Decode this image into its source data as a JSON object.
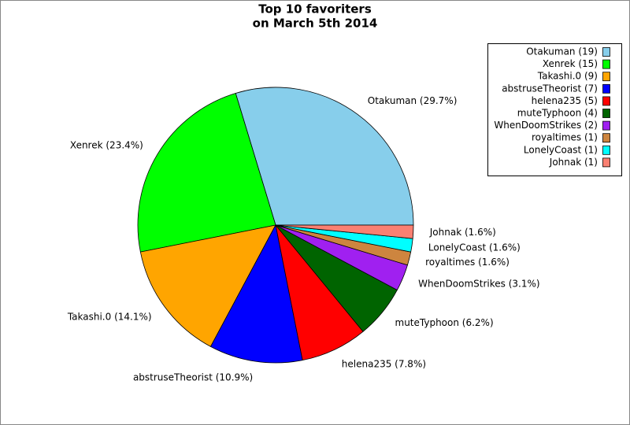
{
  "chart_data": {
    "type": "pie",
    "title": "Top 10 favoriters",
    "subtitle": "on March 5th 2014",
    "categories": [
      "Otakuman (19)",
      "Xenrek (15)",
      "Takashi.0 (9)",
      "abstruseTheorist (7)",
      "helena235 (5)",
      "muteTyphoon (4)",
      "WhenDoomStrikes (2)",
      "royaltimes (1)",
      "LonelyCoast (1)",
      "Johnak (1)"
    ],
    "values": [
      19,
      15,
      9,
      7,
      5,
      4,
      2,
      1,
      1,
      1
    ],
    "value_labels": [
      "Otakuman (29.7%)",
      "Xenrek (23.4%)",
      "Takashi.0 (14.1%)",
      "abstruseTheorist (10.9%)",
      "helena235 (7.8%)",
      "muteTyphoon (6.2%)",
      "WhenDoomStrikes (3.1%)",
      "royaltimes (1.6%)",
      "LonelyCoast (1.6%)",
      "Johnak (1.6%)"
    ],
    "colors": [
      "#87ceeb",
      "#00ff00",
      "#ffa500",
      "#0000ff",
      "#ff0000",
      "#006400",
      "#a020f0",
      "#cd853f",
      "#00ffff",
      "#fa8072"
    ],
    "legend": "upper right"
  }
}
